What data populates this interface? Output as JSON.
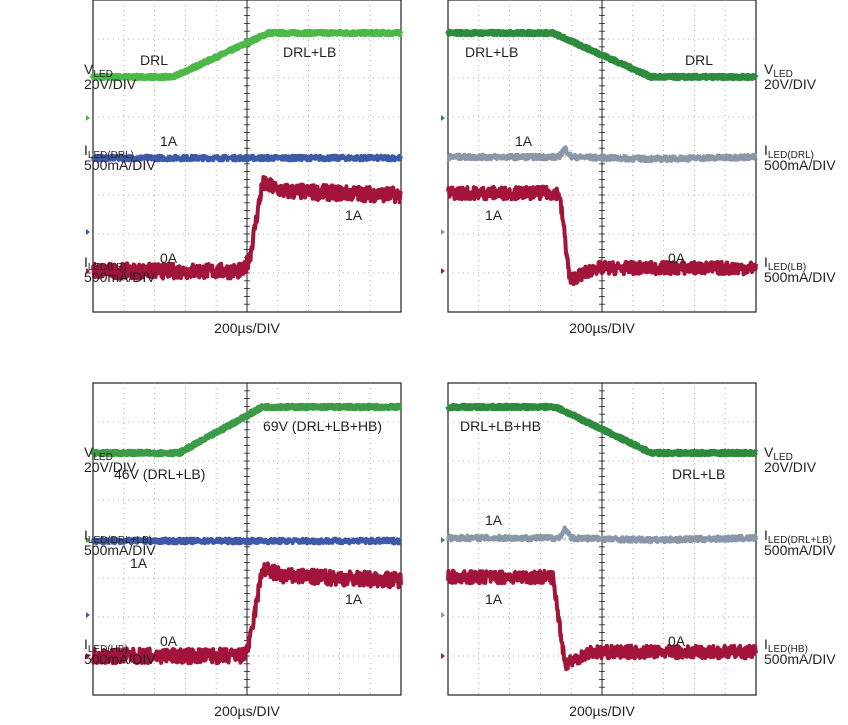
{
  "chart_data": [
    {
      "type": "line",
      "title": "",
      "xlabel": "200µs/DIV",
      "grid": true,
      "traces": [
        {
          "label": {
            "main": "V",
            "sub": "LED",
            "scale": "20V/DIV"
          },
          "color": "#4cb848",
          "side": "left",
          "values": [
            [
              0,
              0
            ],
            [
              2.6,
              0
            ],
            [
              5.7,
              1
            ],
            [
              10,
              1
            ]
          ],
          "noise": 0.03,
          "width": 6,
          "annotations": [
            {
              "text": "DRL"
            },
            {
              "text": "DRL+LB"
            }
          ]
        },
        {
          "label": {
            "main": "I",
            "sub": "LED(DRL)",
            "scale": "500mA/DIV"
          },
          "color": "#3d59a8",
          "side": "left",
          "values": [
            [
              0,
              0
            ],
            [
              10,
              0
            ]
          ],
          "noise": 0.12,
          "width": 4,
          "annotations": [
            {
              "text": "1A"
            }
          ]
        },
        {
          "label": {
            "main": "I",
            "sub": "LED(LB)",
            "scale": "500mA/DIV"
          },
          "color": "#a3143b",
          "side": "left",
          "values": [
            [
              0,
              0
            ],
            [
              4.9,
              0
            ],
            [
              5.1,
              0.2
            ],
            [
              5.5,
              1.15
            ],
            [
              6.2,
              1.05
            ],
            [
              10,
              1.0
            ]
          ],
          "noise": 0.1,
          "width": 4,
          "annotations": [
            {
              "text": "0A"
            },
            {
              "text": "1A"
            }
          ]
        }
      ]
    },
    {
      "type": "line",
      "title": "",
      "xlabel": "200µs/DIV",
      "grid": true,
      "traces": [
        {
          "label": {
            "main": "V",
            "sub": "LED",
            "scale": "20V/DIV"
          },
          "color": "#2e8b3e",
          "side": "right",
          "values": [
            [
              0,
              1
            ],
            [
              3.4,
              1
            ],
            [
              6.6,
              0
            ],
            [
              10,
              0
            ]
          ],
          "noise": 0.03,
          "width": 6,
          "annotations": [
            {
              "text": "DRL+LB"
            },
            {
              "text": "DRL"
            }
          ]
        },
        {
          "label": {
            "main": "I",
            "sub": "LED(DRL)",
            "scale": "500mA/DIV"
          },
          "color": "#8a97a8",
          "side": "right",
          "values": [
            [
              0,
              0
            ],
            [
              3.6,
              0
            ],
            [
              3.8,
              0.45
            ],
            [
              4.0,
              0
            ],
            [
              6.6,
              -0.1
            ],
            [
              10,
              0
            ]
          ],
          "noise": 0.12,
          "width": 4,
          "annotations": [
            {
              "text": "1A"
            }
          ]
        },
        {
          "label": {
            "main": "I",
            "sub": "LED(LB)",
            "scale": "500mA/DIV"
          },
          "color": "#a3143b",
          "side": "right",
          "values": [
            [
              0,
              1
            ],
            [
              3.6,
              1
            ],
            [
              3.75,
              0.6
            ],
            [
              3.95,
              -0.1
            ],
            [
              4.8,
              0.05
            ],
            [
              10,
              0.05
            ]
          ],
          "noise": 0.08,
          "width": 4,
          "annotations": [
            {
              "text": "1A"
            },
            {
              "text": "0A"
            }
          ]
        }
      ]
    },
    {
      "type": "line",
      "title": "",
      "xlabel": "200µs/DIV",
      "grid": true,
      "traces": [
        {
          "label": {
            "main": "V",
            "sub": "LED",
            "scale": "20V/DIV"
          },
          "color": "#3d9b48",
          "side": "left",
          "values": [
            [
              0,
              0
            ],
            [
              2.8,
              0
            ],
            [
              5.5,
              1
            ],
            [
              10,
              1
            ]
          ],
          "noise": 0.03,
          "width": 6,
          "annotations": [
            {
              "text": "46V (DRL+LB)"
            },
            {
              "text": "69V (DRL+LB+HB)"
            }
          ]
        },
        {
          "label": {
            "main": "I",
            "sub": "LED(DRL+LB)",
            "scale": "500mA/DIV"
          },
          "color": "#3d59a8",
          "side": "left",
          "values": [
            [
              0,
              0
            ],
            [
              10,
              0
            ]
          ],
          "noise": 0.12,
          "width": 4,
          "annotations": [
            {
              "text": "1A"
            }
          ]
        },
        {
          "label": {
            "main": "I",
            "sub": "LED(HB)",
            "scale": "500mA/DIV"
          },
          "color": "#a3143b",
          "side": "left",
          "values": [
            [
              0,
              0
            ],
            [
              4.9,
              0
            ],
            [
              5.1,
              0.2
            ],
            [
              5.5,
              1.15
            ],
            [
              6.2,
              1.05
            ],
            [
              10,
              1.0
            ]
          ],
          "noise": 0.1,
          "width": 4,
          "annotations": [
            {
              "text": "0A"
            },
            {
              "text": "1A"
            }
          ]
        }
      ]
    },
    {
      "type": "line",
      "title": "",
      "xlabel": "200µs/DIV",
      "grid": true,
      "traces": [
        {
          "label": {
            "main": "V",
            "sub": "LED",
            "scale": "20V/DIV"
          },
          "color": "#2e8b3e",
          "side": "right",
          "values": [
            [
              0,
              1
            ],
            [
              3.5,
              1
            ],
            [
              6.6,
              0
            ],
            [
              10,
              0
            ]
          ],
          "noise": 0.03,
          "width": 6,
          "annotations": [
            {
              "text": "DRL+LB+HB"
            },
            {
              "text": "DRL+LB"
            }
          ]
        },
        {
          "label": {
            "main": "I",
            "sub": "LED(DRL+LB)",
            "scale": "500mA/DIV"
          },
          "color": "#8a97a8",
          "side": "right",
          "values": [
            [
              0,
              0
            ],
            [
              3.6,
              0
            ],
            [
              3.8,
              0.45
            ],
            [
              4.0,
              0
            ],
            [
              6.6,
              -0.1
            ],
            [
              10,
              0
            ]
          ],
          "noise": 0.12,
          "width": 4,
          "annotations": [
            {
              "text": "1A"
            }
          ]
        },
        {
          "label": {
            "main": "I",
            "sub": "LED(HB)",
            "scale": "500mA/DIV"
          },
          "color": "#a3143b",
          "side": "right",
          "values": [
            [
              0,
              1
            ],
            [
              3.4,
              1
            ],
            [
              3.55,
              0.6
            ],
            [
              3.8,
              -0.1
            ],
            [
              4.6,
              0.05
            ],
            [
              10,
              0.05
            ]
          ],
          "noise": 0.08,
          "width": 4,
          "annotations": [
            {
              "text": "1A"
            },
            {
              "text": "0A"
            }
          ]
        }
      ]
    }
  ]
}
